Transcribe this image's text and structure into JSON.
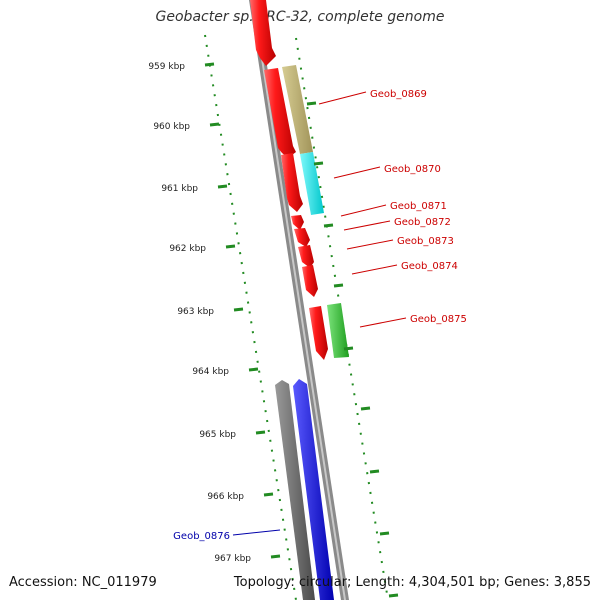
{
  "title": "Geobacter sp. FRC-32, complete genome",
  "footer": {
    "accession": "Accession: NC_011979",
    "stats": "Topology: circular; Length: 4,304,501 bp; Genes: 3,855"
  },
  "colors": {
    "forward_gene": "#ee0000",
    "tan_gene": "#b5a96a",
    "cyan_gene": "#00e8ee",
    "green_gene": "#33cc33",
    "blue_gene": "#0000ee",
    "gray_gene": "#666666",
    "kbp_ticks": "#228b22",
    "backbone": "#888888",
    "label_red": "#cc0000",
    "label_blue": "#0000aa"
  },
  "kbp_ticks": [
    "959 kbp",
    "960 kbp",
    "961 kbp",
    "962 kbp",
    "963 kbp",
    "964 kbp",
    "965 kbp",
    "966 kbp",
    "967 kbp"
  ],
  "genes": [
    {
      "label": "Geob_0869",
      "color": "label_red"
    },
    {
      "label": "Geob_0870",
      "color": "label_red"
    },
    {
      "label": "Geob_0871",
      "color": "label_red"
    },
    {
      "label": "Geob_0872",
      "color": "label_red"
    },
    {
      "label": "Geob_0873",
      "color": "label_red"
    },
    {
      "label": "Geob_0874",
      "color": "label_red"
    },
    {
      "label": "Geob_0875",
      "color": "label_red"
    },
    {
      "label": "Geob_0876",
      "color": "label_blue"
    }
  ]
}
